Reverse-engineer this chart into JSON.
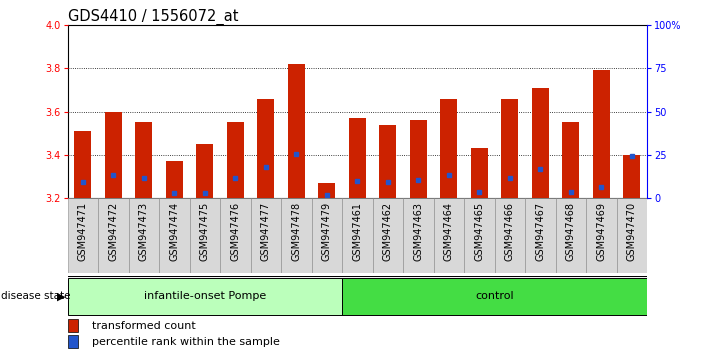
{
  "title": "GDS4410 / 1556072_at",
  "samples": [
    "GSM947471",
    "GSM947472",
    "GSM947473",
    "GSM947474",
    "GSM947475",
    "GSM947476",
    "GSM947477",
    "GSM947478",
    "GSM947479",
    "GSM947461",
    "GSM947462",
    "GSM947463",
    "GSM947464",
    "GSM947465",
    "GSM947466",
    "GSM947467",
    "GSM947468",
    "GSM947469",
    "GSM947470"
  ],
  "transformed_count": [
    3.51,
    3.6,
    3.55,
    3.37,
    3.45,
    3.55,
    3.66,
    3.82,
    3.27,
    3.57,
    3.54,
    3.56,
    3.66,
    3.43,
    3.66,
    3.71,
    3.55,
    3.79,
    3.4
  ],
  "percentile_pos": [
    3.275,
    3.305,
    3.295,
    3.225,
    3.225,
    3.295,
    3.345,
    3.405,
    3.215,
    3.28,
    3.275,
    3.285,
    3.305,
    3.23,
    3.295,
    3.335,
    3.23,
    3.25,
    3.395
  ],
  "groups": [
    {
      "label": "infantile-onset Pompe",
      "start": 0,
      "end": 9,
      "color_light": "#ccffcc",
      "color_dark": "#88ee88"
    },
    {
      "label": "control",
      "start": 9,
      "end": 19,
      "color_light": "#44dd44",
      "color_dark": "#22cc22"
    }
  ],
  "ylim_left": [
    3.2,
    4.0
  ],
  "ylim_right": [
    0,
    100
  ],
  "yticks_left": [
    3.2,
    3.4,
    3.6,
    3.8,
    4.0
  ],
  "yticks_right": [
    0,
    25,
    50,
    75,
    100
  ],
  "bar_color": "#cc2200",
  "blue_color": "#2255cc",
  "bar_width": 0.55,
  "plot_bg": "#ffffff",
  "legend_items": [
    {
      "color": "#cc2200",
      "label": "transformed count"
    },
    {
      "color": "#2255cc",
      "label": "percentile rank within the sample"
    }
  ],
  "disease_state_label": "disease state",
  "title_fontsize": 10.5,
  "tick_fontsize": 7,
  "base_value": 3.2,
  "n_pompe": 9,
  "n_total": 19
}
